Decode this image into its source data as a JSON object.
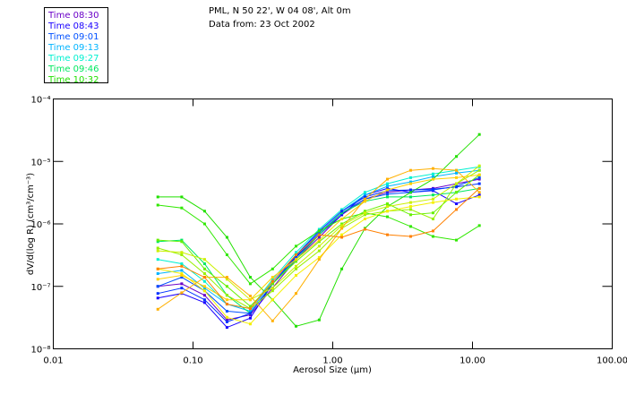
{
  "chart_data": {
    "type": "line",
    "title_lines": [
      "PML, N 50 22', W 04 08', Alt 0m",
      "Data from: 23 Oct 2002"
    ],
    "xlabel": "Aerosol Size (µm)",
    "ylabel": "dV/d(log R) (cm³/cm⁻³)",
    "xscale": "log",
    "yscale": "log",
    "xlim": [
      0.01,
      100
    ],
    "ylim": [
      1e-08,
      0.0001
    ],
    "x_tick_labels": [
      "0.01",
      "0.10",
      "1.00",
      "10.00",
      "100.00"
    ],
    "x_tick_values": [
      0.01,
      0.1,
      1,
      10,
      100
    ],
    "y_tick_labels": [
      "10⁻⁴",
      "10⁻⁵",
      "10⁻⁶",
      "10⁻⁷",
      "10⁻⁸"
    ],
    "y_tick_values": [
      0.0001,
      1e-05,
      1e-06,
      1e-07,
      1e-08
    ],
    "grid": false,
    "legend_placement": "top-left outside",
    "x": [
      0.056,
      0.083,
      0.121,
      0.175,
      0.257,
      0.371,
      0.546,
      0.8,
      1.16,
      1.7,
      2.46,
      3.61,
      5.22,
      7.67,
      11.2
    ],
    "series": [
      {
        "name": "Time 08:30",
        "color": "#6a00c8",
        "values": [
          1e-07,
          1.1e-07,
          7.2e-08,
          2.9e-08,
          3.5e-08,
          9.4e-08,
          2.7e-07,
          6.1e-07,
          1.4e-06,
          2.5e-06,
          3.2e-06,
          3.5e-06,
          3.7e-06,
          4.4e-06,
          5.2e-06
        ]
      },
      {
        "name": "Time 08:43",
        "color": "#1a00ff",
        "values": [
          6.5e-08,
          7.7e-08,
          5.5e-08,
          2.2e-08,
          3.1e-08,
          1.1e-07,
          2.9e-07,
          6.7e-07,
          1.4e-06,
          2.9e-06,
          3.7e-06,
          3.2e-06,
          3.4e-06,
          2.1e-06,
          2.9e-06
        ]
      },
      {
        "name": "Time 09:01",
        "color": "#0050ff",
        "values": [
          1e-07,
          1.4e-07,
          8.5e-08,
          4e-08,
          3.7e-08,
          1.1e-07,
          3e-07,
          7.2e-07,
          1.5e-06,
          2.5e-06,
          3e-06,
          3.2e-06,
          3.5e-06,
          4e-06,
          5.5e-06
        ]
      },
      {
        "name": "Time 09:13",
        "color": "#00b4ff",
        "values": [
          1.6e-07,
          1.8e-07,
          9.4e-08,
          5.2e-08,
          4e-08,
          1.2e-07,
          3.2e-07,
          7.7e-07,
          1.6e-06,
          2.9e-06,
          4e-06,
          4.7e-06,
          5.7e-06,
          6.5e-06,
          7.2e-06
        ]
      },
      {
        "name": "Time 09:27",
        "color": "#00f0d0",
        "values": [
          2.7e-07,
          2.3e-07,
          1.2e-07,
          5.2e-08,
          4.4e-08,
          1.3e-07,
          3.5e-07,
          8.2e-07,
          1.7e-06,
          3.2e-06,
          4.4e-06,
          5.5e-06,
          6.3e-06,
          7.2e-06,
          8.2e-06
        ]
      },
      {
        "name": "Time 09:46",
        "color": "#00e860",
        "values": [
          5.2e-07,
          5.5e-07,
          2.3e-07,
          7.2e-08,
          3.7e-08,
          1.1e-07,
          2.7e-07,
          6.7e-07,
          1.5e-06,
          2.3e-06,
          2.7e-06,
          2.7e-06,
          2.9e-06,
          3.2e-06,
          3.7e-06
        ]
      },
      {
        "name": "Time 10:32",
        "color": "#22e000",
        "values": [
          2.7e-06,
          2.7e-06,
          1.6e-06,
          6.1e-07,
          1.4e-07,
          6.1e-08,
          2.3e-08,
          2.9e-08,
          1.9e-07,
          8.5e-07,
          1.9e-06,
          3.2e-06,
          5.2e-06,
          1.2e-05,
          2.7e-05
        ]
      },
      {
        "name": "",
        "color": "#0030ff",
        "values": [
          7.7e-08,
          9.4e-08,
          6.1e-08,
          2.7e-08,
          3.7e-08,
          1.1e-07,
          3.1e-07,
          7.7e-07,
          1.6e-06,
          2.7e-06,
          3.4e-06,
          3.5e-06,
          3.6e-06,
          3.9e-06,
          4.4e-06
        ]
      },
      {
        "name": "",
        "color": "#30e800",
        "values": [
          2e-06,
          1.8e-06,
          1e-06,
          3.2e-07,
          1.1e-07,
          1.9e-07,
          4.4e-07,
          7.7e-07,
          1.2e-06,
          1.5e-06,
          1.3e-06,
          9.1e-07,
          6.3e-07,
          5.5e-07,
          9.4e-07
        ]
      },
      {
        "name": "",
        "color": "#66f000",
        "values": [
          5.5e-07,
          5.2e-07,
          1.9e-07,
          1e-07,
          4.8e-08,
          1.1e-07,
          2.5e-07,
          5.2e-07,
          1e-06,
          1.6e-06,
          2.1e-06,
          1.4e-06,
          1.5e-06,
          3.2e-06,
          6.1e-06
        ]
      },
      {
        "name": "",
        "color": "#99f000",
        "values": [
          4.1e-07,
          3.2e-07,
          1.6e-07,
          7.2e-08,
          4.4e-08,
          8.5e-08,
          1.9e-07,
          3.7e-07,
          8.5e-07,
          1.4e-06,
          1.6e-06,
          1.7e-06,
          1.2e-06,
          4.4e-06,
          7.2e-06
        ]
      },
      {
        "name": "",
        "color": "#ccf000",
        "values": [
          3.7e-07,
          3.5e-07,
          2.7e-07,
          1.3e-07,
          6.1e-08,
          9.4e-08,
          2.1e-07,
          4.4e-07,
          9.4e-07,
          1.5e-06,
          1.9e-06,
          2.2e-06,
          2.5e-06,
          4.4e-06,
          8.5e-06
        ]
      },
      {
        "name": "",
        "color": "#f4f000",
        "values": [
          1.9e-07,
          1.6e-07,
          8.5e-08,
          3.2e-08,
          2.5e-08,
          6.1e-08,
          1.5e-07,
          2.9e-07,
          6.7e-07,
          1.2e-06,
          1.6e-06,
          1.9e-06,
          2.2e-06,
          2.5e-06,
          2.7e-06
        ]
      },
      {
        "name": "",
        "color": "#ffd000",
        "values": [
          1.3e-07,
          1.5e-07,
          1e-07,
          6.1e-08,
          6.1e-08,
          1.4e-07,
          2.7e-07,
          5.5e-07,
          1.2e-06,
          2.3e-06,
          3.5e-06,
          4.4e-06,
          5.2e-06,
          5.5e-06,
          6.1e-06
        ]
      },
      {
        "name": "",
        "color": "#ffb000",
        "values": [
          4.3e-08,
          7.9e-08,
          1.4e-07,
          1.4e-07,
          7e-08,
          2.8e-08,
          7.7e-08,
          2.7e-07,
          8.5e-07,
          2.5e-06,
          5.2e-06,
          7.2e-06,
          7.7e-06,
          7.2e-06,
          3.2e-06
        ]
      },
      {
        "name": "",
        "color": "#ff8000",
        "values": [
          1.9e-07,
          2.1e-07,
          1.4e-07,
          5.2e-08,
          4.4e-08,
          1.2e-07,
          3.2e-07,
          6.7e-07,
          6.1e-07,
          8.2e-07,
          6.7e-07,
          6.3e-07,
          7.7e-07,
          1.7e-06,
          3.7e-06
        ]
      }
    ]
  }
}
